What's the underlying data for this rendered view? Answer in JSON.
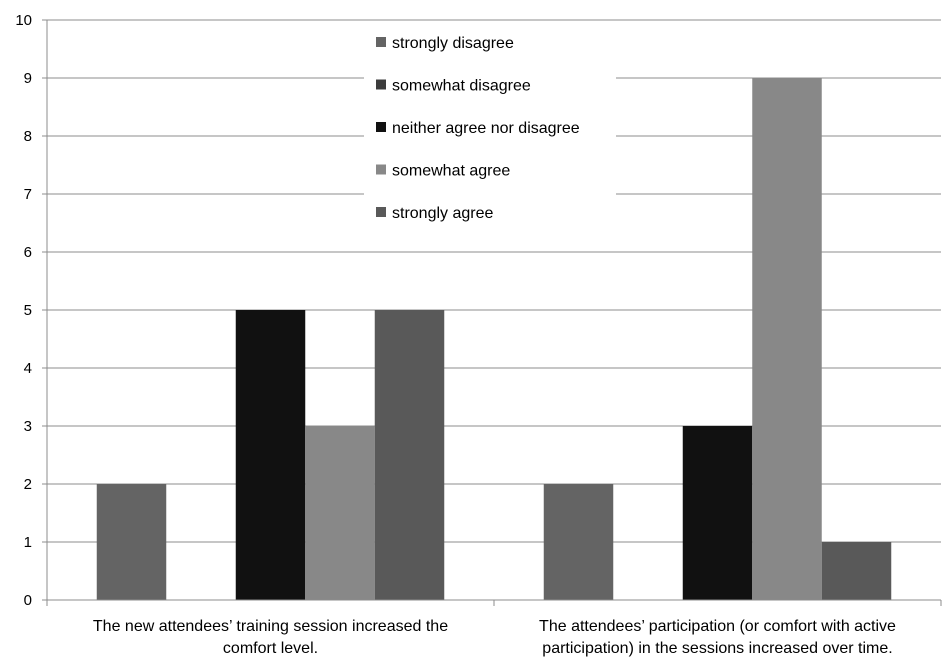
{
  "chart_data": {
    "type": "bar",
    "categories": [
      [
        "The new attendees’ training session increased the",
        "comfort level."
      ],
      [
        "The attendees’ participation (or comfort with active",
        "participation) in the sessions increased over time."
      ]
    ],
    "series": [
      {
        "name": "strongly disagree",
        "color": "#646464",
        "values": [
          2,
          2
        ]
      },
      {
        "name": "somewhat disagree",
        "color": "#3c3c3c",
        "values": [
          0,
          0
        ]
      },
      {
        "name": "neither agree nor disagree",
        "color": "#111111",
        "values": [
          5,
          3
        ]
      },
      {
        "name": "somewhat agree",
        "color": "#888888",
        "values": [
          3,
          9
        ]
      },
      {
        "name": "strongly agree",
        "color": "#595959",
        "values": [
          5,
          1
        ]
      }
    ],
    "ylim": [
      0,
      10
    ],
    "yticks": [
      "0",
      "1",
      "2",
      "3",
      "4",
      "5",
      "6",
      "7",
      "8",
      "9",
      "10"
    ],
    "grid": true,
    "legend": "top-center"
  }
}
